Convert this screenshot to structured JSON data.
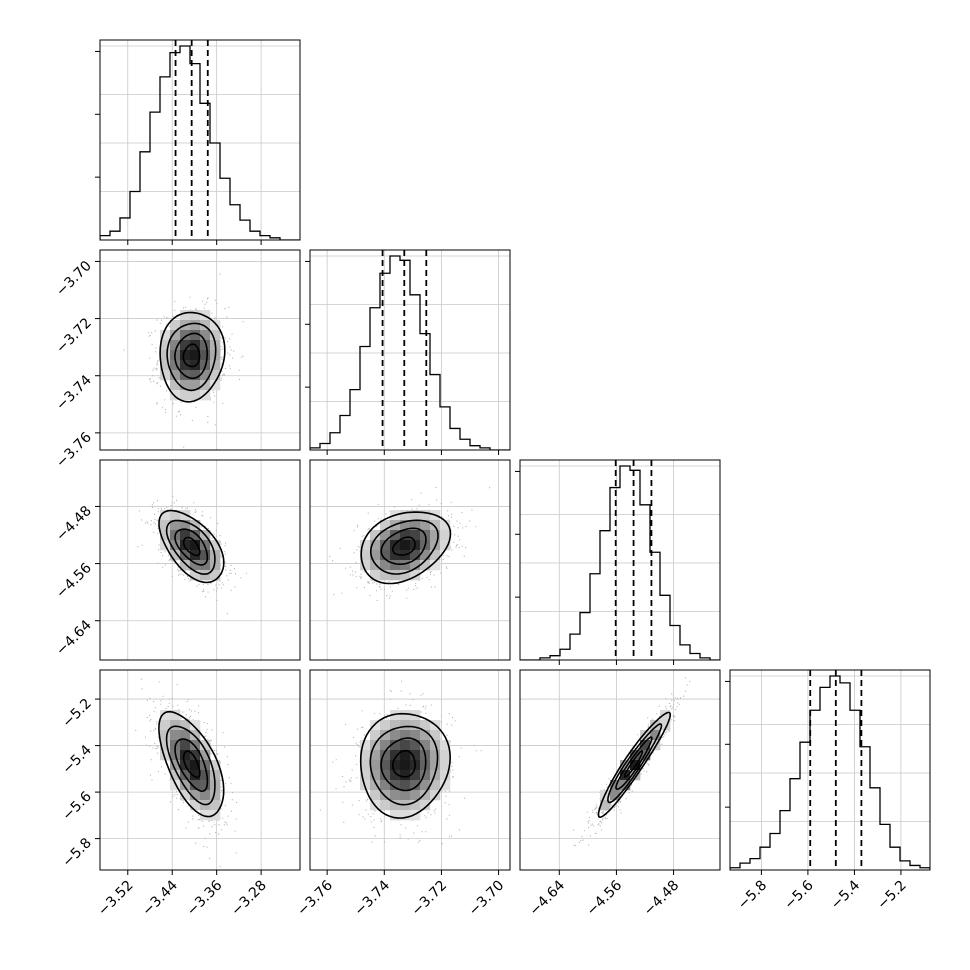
{
  "chart_data": {
    "type": "corner",
    "grid": true,
    "parameters": [
      {
        "lim": [
          -3.57,
          -3.21
        ],
        "ticks": [
          -3.52,
          -3.44,
          -3.36,
          -3.28
        ],
        "tick_labels": [
          "−3.52",
          "−3.44",
          "−3.36",
          "−3.28"
        ],
        "median": -3.405,
        "sigma": 0.029,
        "quantiles": [
          -3.434,
          -3.405,
          -3.376
        ],
        "hist_counts": [
          2,
          4,
          10,
          22,
          40,
          58,
          74,
          85,
          88,
          80,
          62,
          44,
          28,
          16,
          9,
          4,
          2,
          1,
          0,
          0
        ]
      },
      {
        "lim": [
          -3.766,
          -3.696
        ],
        "ticks": [
          -3.76,
          -3.74,
          -3.72,
          -3.7
        ],
        "tick_labels": [
          "−3.76",
          "−3.74",
          "−3.72",
          "−3.70"
        ],
        "median": -3.733,
        "sigma": 0.0078,
        "quantiles": [
          -3.7406,
          -3.733,
          -3.7253
        ],
        "hist_counts": [
          1,
          3,
          8,
          16,
          28,
          48,
          66,
          82,
          90,
          88,
          72,
          54,
          35,
          20,
          10,
          5,
          2,
          1,
          0,
          0
        ]
      },
      {
        "lim": [
          -4.695,
          -4.415
        ],
        "ticks": [
          -4.64,
          -4.56,
          -4.48
        ],
        "tick_labels": [
          "−4.64",
          "−4.56",
          "−4.48"
        ],
        "median": -4.536,
        "sigma": 0.025,
        "quantiles": [
          -4.561,
          -4.536,
          -4.511
        ],
        "hist_counts": [
          0,
          0,
          1,
          2,
          5,
          12,
          22,
          40,
          60,
          80,
          90,
          88,
          72,
          50,
          30,
          16,
          7,
          3,
          1,
          0
        ]
      },
      {
        "lim": [
          -5.935,
          -5.075
        ],
        "ticks": [
          -5.8,
          -5.6,
          -5.4,
          -5.2
        ],
        "tick_labels": [
          "−5.8",
          "−5.6",
          "−5.4",
          "−5.2"
        ],
        "median": -5.48,
        "sigma": 0.112,
        "quantiles": [
          -5.59,
          -5.48,
          -5.37
        ],
        "hist_counts": [
          1,
          3,
          5,
          10,
          16,
          26,
          40,
          56,
          70,
          80,
          85,
          82,
          70,
          54,
          36,
          20,
          10,
          4,
          2,
          1
        ]
      }
    ],
    "correlations": {
      "1_0": 0.05,
      "2_0": -0.55,
      "2_1": 0.3,
      "3_0": -0.6,
      "3_1": 0.05,
      "3_2": 0.95
    }
  }
}
